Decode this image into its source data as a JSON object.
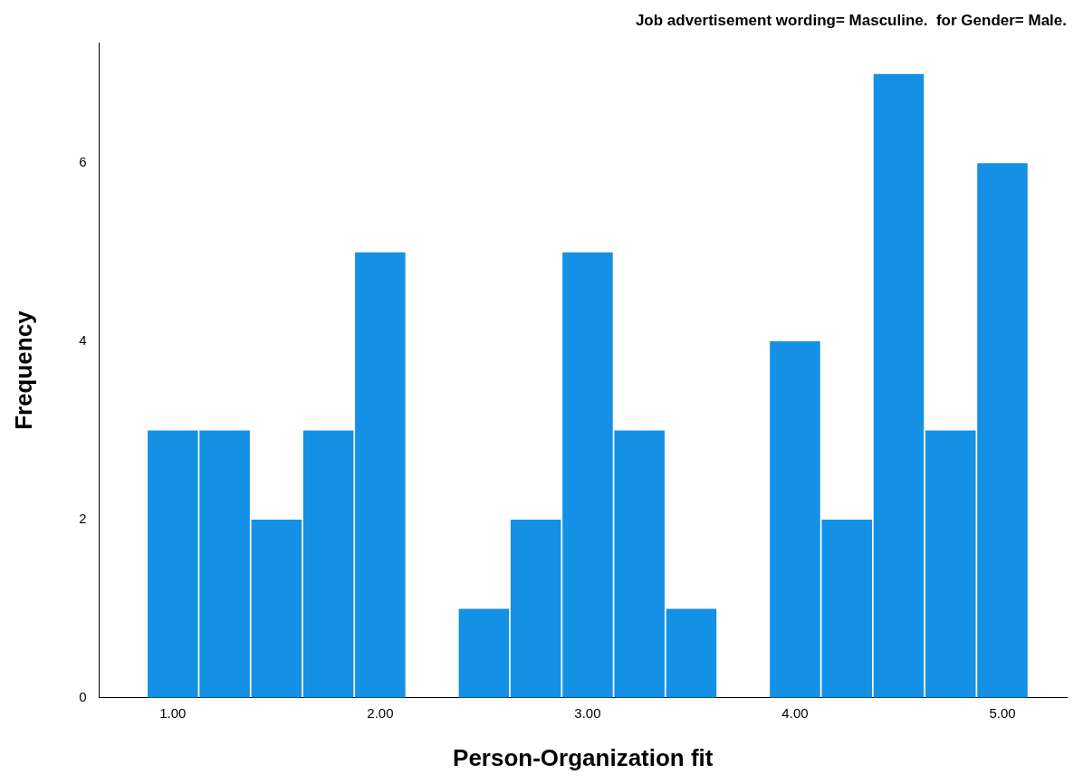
{
  "chart_data": {
    "type": "histogram",
    "title": "Job advertisement wording= Masculine.  for Gender= Male.",
    "xlabel": "Person-Organization fit",
    "ylabel": "Frequency",
    "bins": [
      0.875,
      1.125,
      1.375,
      1.625,
      1.875,
      2.125,
      2.375,
      2.625,
      2.875,
      3.125,
      3.375,
      3.625,
      3.875,
      4.125,
      4.375,
      4.625,
      4.875,
      5.125
    ],
    "values": [
      3,
      3,
      2,
      3,
      5,
      0,
      1,
      2,
      5,
      3,
      1,
      0,
      4,
      2,
      7,
      3,
      6
    ],
    "color": "#1490e4",
    "xlim": [
      0.645,
      5.31
    ],
    "xticks": [
      {
        "value": 1,
        "label": "1.00"
      },
      {
        "value": 2,
        "label": "2.00"
      },
      {
        "value": 3,
        "label": "3.00"
      },
      {
        "value": 4,
        "label": "4.00"
      },
      {
        "value": 5,
        "label": "5.00"
      }
    ],
    "ylim": [
      0,
      7.35
    ],
    "yticks": [
      0,
      2,
      4,
      6
    ],
    "grid": false,
    "legend": false
  }
}
